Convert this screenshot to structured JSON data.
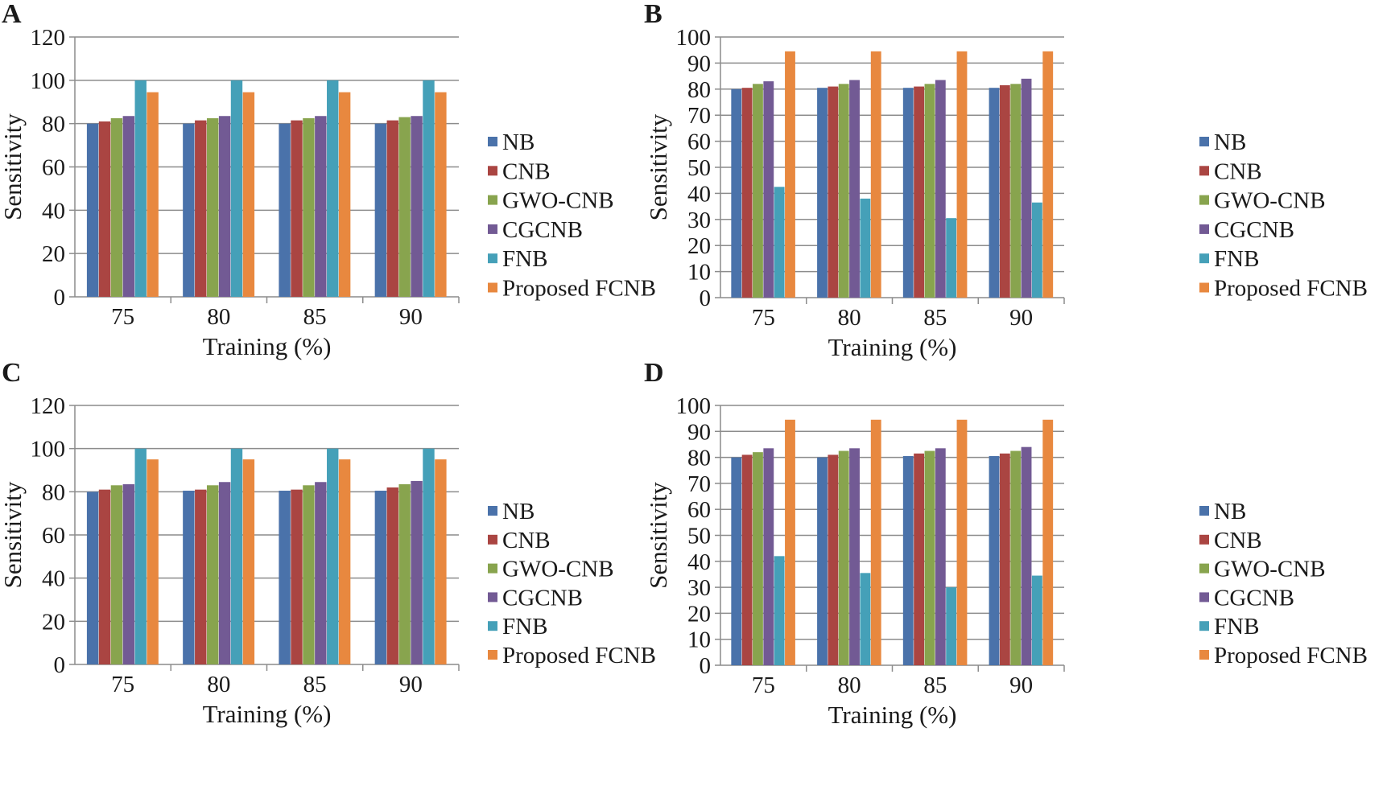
{
  "series_colors": [
    "#4a72aa",
    "#aa4542",
    "#88a44e",
    "#725a94",
    "#45a0b8",
    "#e8883f"
  ],
  "chart_data": [
    {
      "panel": "A",
      "type": "bar",
      "categories": [
        "75",
        "80",
        "85",
        "90"
      ],
      "xlabel": "Training (%)",
      "ylabel": "Sensitivity",
      "ylim": [
        0,
        120
      ],
      "yticks": [
        "0",
        "20",
        "40",
        "60",
        "80",
        "100",
        "120"
      ],
      "grid": true,
      "legend": "right",
      "series": [
        {
          "name": "NB",
          "values": [
            80,
            80,
            80,
            80
          ]
        },
        {
          "name": "CNB",
          "values": [
            81,
            81.5,
            81.5,
            81.5
          ]
        },
        {
          "name": "GWO-CNB",
          "values": [
            82.5,
            82.5,
            82.5,
            83
          ]
        },
        {
          "name": "CGCNB",
          "values": [
            83.5,
            83.5,
            83.5,
            83.5
          ]
        },
        {
          "name": "FNB",
          "values": [
            100,
            100,
            100,
            100
          ]
        },
        {
          "name": "Proposed FCNB",
          "values": [
            94.5,
            94.5,
            94.5,
            94.5
          ]
        }
      ]
    },
    {
      "panel": "B",
      "type": "bar",
      "categories": [
        "75",
        "80",
        "85",
        "90"
      ],
      "xlabel": "Training (%)",
      "ylabel": "Sensitivity",
      "ylim": [
        0,
        100
      ],
      "yticks": [
        "0",
        "10",
        "20",
        "30",
        "40",
        "50",
        "60",
        "70",
        "80",
        "90",
        "100"
      ],
      "grid": true,
      "legend": "right",
      "series": [
        {
          "name": "NB",
          "values": [
            80,
            80.5,
            80.5,
            80.5
          ]
        },
        {
          "name": "CNB",
          "values": [
            80.5,
            81,
            81,
            81.5
          ]
        },
        {
          "name": "GWO-CNB",
          "values": [
            82,
            82,
            82,
            82
          ]
        },
        {
          "name": "CGCNB",
          "values": [
            83,
            83.5,
            83.5,
            84
          ]
        },
        {
          "name": "FNB",
          "values": [
            42.5,
            38,
            30.5,
            36.5
          ]
        },
        {
          "name": "Proposed FCNB",
          "values": [
            94.5,
            94.5,
            94.5,
            94.5
          ]
        }
      ]
    },
    {
      "panel": "C",
      "type": "bar",
      "categories": [
        "75",
        "80",
        "85",
        "90"
      ],
      "xlabel": "Training (%)",
      "ylabel": "Sensitivity",
      "ylim": [
        0,
        120
      ],
      "yticks": [
        "0",
        "20",
        "40",
        "60",
        "80",
        "100",
        "120"
      ],
      "grid": true,
      "legend": "right",
      "series": [
        {
          "name": "NB",
          "values": [
            80,
            80.5,
            80.5,
            80.5
          ]
        },
        {
          "name": "CNB",
          "values": [
            81,
            81,
            81,
            82
          ]
        },
        {
          "name": "GWO-CNB",
          "values": [
            83,
            83,
            83,
            83.5
          ]
        },
        {
          "name": "CGCNB",
          "values": [
            83.5,
            84.5,
            84.5,
            85
          ]
        },
        {
          "name": "FNB",
          "values": [
            100,
            100,
            100,
            100
          ]
        },
        {
          "name": "Proposed FCNB",
          "values": [
            95,
            95,
            95,
            95
          ]
        }
      ]
    },
    {
      "panel": "D",
      "type": "bar",
      "categories": [
        "75",
        "80",
        "85",
        "90"
      ],
      "xlabel": "Training (%)",
      "ylabel": "Sensitivity",
      "ylim": [
        0,
        100
      ],
      "yticks": [
        "0",
        "10",
        "20",
        "30",
        "40",
        "50",
        "60",
        "70",
        "80",
        "90",
        "100"
      ],
      "grid": true,
      "legend": "right",
      "series": [
        {
          "name": "NB",
          "values": [
            80,
            80,
            80.5,
            80.5
          ]
        },
        {
          "name": "CNB",
          "values": [
            81,
            81,
            81.5,
            81.5
          ]
        },
        {
          "name": "GWO-CNB",
          "values": [
            82,
            82.5,
            82.5,
            82.5
          ]
        },
        {
          "name": "CGCNB",
          "values": [
            83.5,
            83.5,
            83.5,
            84
          ]
        },
        {
          "name": "FNB",
          "values": [
            42,
            35.5,
            30,
            34.5
          ]
        },
        {
          "name": "Proposed FCNB",
          "values": [
            94.5,
            94.5,
            94.5,
            94.5
          ]
        }
      ]
    }
  ]
}
